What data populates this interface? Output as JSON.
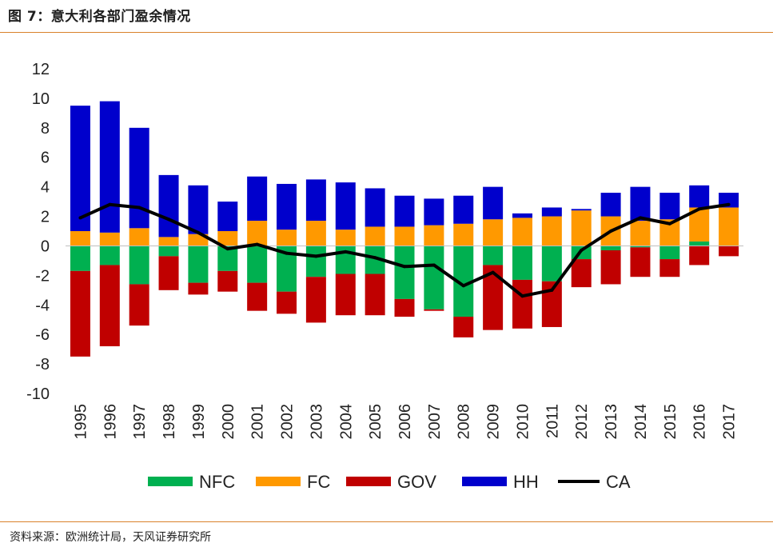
{
  "header": {
    "title": "图 7：意大利各部门盈余情况"
  },
  "footer": {
    "source": "资料来源：欧洲统计局，天风证券研究所"
  },
  "colors": {
    "NFC": "#00b050",
    "FC": "#ff9900",
    "GOV": "#c00000",
    "HH": "#0000cc",
    "CA": "#000000"
  },
  "chart_data": {
    "type": "bar",
    "stacked": true,
    "title": "意大利各部门盈余情况",
    "categories": [
      "1995",
      "1996",
      "1997",
      "1998",
      "1999",
      "2000",
      "2001",
      "2002",
      "2003",
      "2004",
      "2005",
      "2006",
      "2007",
      "2008",
      "2009",
      "2010",
      "2011",
      "2012",
      "2013",
      "2014",
      "2015",
      "2016",
      "2017"
    ],
    "ylim": [
      -10,
      12
    ],
    "yticks": [
      12,
      10,
      8,
      6,
      4,
      2,
      0,
      -2,
      -4,
      -6,
      -8,
      -10
    ],
    "series": [
      {
        "name": "NFC",
        "type": "bar",
        "values": [
          -1.7,
          -1.3,
          -2.6,
          -0.7,
          -2.5,
          -1.7,
          -2.5,
          -3.1,
          -2.1,
          -1.9,
          -1.9,
          -3.6,
          -4.3,
          -4.8,
          -1.3,
          -2.3,
          -2.4,
          -0.9,
          -0.3,
          -0.1,
          -0.9,
          0.3,
          0.0
        ]
      },
      {
        "name": "FC",
        "type": "bar",
        "values": [
          1.0,
          0.9,
          1.2,
          0.6,
          0.8,
          1.0,
          1.7,
          1.1,
          1.7,
          1.1,
          1.3,
          1.3,
          1.4,
          1.5,
          1.8,
          1.9,
          2.0,
          2.4,
          2.0,
          1.7,
          1.8,
          2.3,
          2.6
        ]
      },
      {
        "name": "GOV",
        "type": "bar",
        "values": [
          -5.8,
          -5.5,
          -2.8,
          -2.3,
          -0.8,
          -1.4,
          -1.9,
          -1.5,
          -3.1,
          -2.8,
          -2.8,
          -1.2,
          -0.1,
          -1.4,
          -4.4,
          -3.3,
          -3.1,
          -1.9,
          -2.3,
          -2.0,
          -1.2,
          -1.3,
          -0.7
        ]
      },
      {
        "name": "HH",
        "type": "bar",
        "values": [
          8.5,
          8.9,
          6.8,
          4.2,
          3.3,
          2.0,
          3.0,
          3.1,
          2.8,
          3.2,
          2.6,
          2.1,
          1.8,
          1.9,
          2.2,
          0.3,
          0.6,
          0.1,
          1.6,
          2.3,
          1.8,
          1.5,
          1.0
        ]
      },
      {
        "name": "CA",
        "type": "line",
        "values": [
          1.9,
          2.8,
          2.6,
          1.8,
          0.9,
          -0.2,
          0.1,
          -0.5,
          -0.7,
          -0.4,
          -0.8,
          -1.4,
          -1.3,
          -2.7,
          -1.8,
          -3.4,
          -3.0,
          -0.3,
          1.0,
          1.9,
          1.5,
          2.5,
          2.8
        ]
      }
    ],
    "legend": [
      "NFC",
      "FC",
      "GOV",
      "HH",
      "CA"
    ],
    "legend_position": "bottom"
  }
}
